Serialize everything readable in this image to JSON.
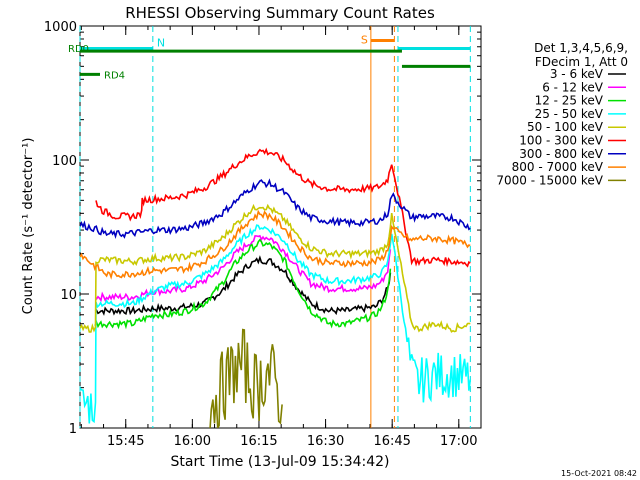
{
  "chart_data": {
    "type": "line",
    "title": "RHESSI Observing Summary Count Rates",
    "xlabel": "Start Time (13-Jul-09 15:34:42)",
    "ylabel": "Count Rate (s⁻¹ detector⁻¹)",
    "x_unit": "minutes since 15:34:42",
    "xlim": [
      0,
      90.3
    ],
    "ylim": [
      1,
      1000
    ],
    "yscale": "log",
    "x_ticks": [
      {
        "label": "15:45",
        "value": 10.3
      },
      {
        "label": "16:00",
        "value": 25.3
      },
      {
        "label": "16:15",
        "value": 40.3
      },
      {
        "label": "16:30",
        "value": 55.3
      },
      {
        "label": "16:45",
        "value": 70.3
      },
      {
        "label": "17:00",
        "value": 85.3
      }
    ],
    "y_ticks": [
      {
        "label": "1",
        "value": 1
      },
      {
        "label": "10",
        "value": 10
      },
      {
        "label": "100",
        "value": 100
      },
      {
        "label": "1000",
        "value": 1000
      }
    ],
    "legend_header": [
      "Det 1,3,4,5,6,9,",
      "FDecim 1, Att 0"
    ],
    "legend_position": "right",
    "footer_timestamp": "15-Oct-2021 08:42",
    "flags": {
      "rd0": {
        "label": "RD0",
        "value": 650,
        "x_start": 0,
        "x_end": 72.5,
        "color": "#008000"
      },
      "rd4": {
        "label": "RD4",
        "value": 500,
        "x_start": 72.5,
        "x_end": 87.9,
        "color": "#008000"
      },
      "night": [
        {
          "label": "N",
          "x_start": 0,
          "x_end": 16.4,
          "value": 680
        },
        {
          "label": "",
          "x_start": 71.6,
          "x_end": 87.9,
          "value": 680
        }
      ],
      "saa": {
        "label": "S",
        "x_start": 65.5,
        "x_end": 70.8,
        "value": 780
      },
      "night_color": "#00e0e0",
      "saa_color": "#ff8000"
    },
    "series": [
      {
        "name": "3 - 6 keV",
        "color": "#000000",
        "x": [
          3.4,
          6,
          12,
          16.6,
          20,
          24,
          28,
          32,
          35,
          38,
          40.5,
          43,
          46,
          49,
          52,
          56,
          60,
          64,
          66.5,
          68,
          69.3,
          70.2,
          74.7,
          76,
          80,
          84,
          87.9
        ],
        "y": [
          7.5,
          7.5,
          7.5,
          7.8,
          7.8,
          8,
          8.5,
          10.5,
          13.5,
          16.5,
          18,
          17.5,
          15,
          11,
          8.5,
          7.5,
          7.5,
          7.8,
          8,
          9,
          11,
          16,
          null,
          null,
          null,
          null,
          null
        ]
      },
      {
        "name": "6 - 12 keV",
        "color": "#ff00ff",
        "x": [
          3.4,
          6,
          12,
          16.6,
          20,
          24,
          28,
          32,
          35,
          38,
          40.5,
          43,
          46,
          49,
          52,
          56,
          60,
          64,
          66.5,
          68,
          69.3,
          70.2,
          74.7,
          76,
          80,
          84,
          87.9
        ],
        "y": [
          9.5,
          9.5,
          9.5,
          10.5,
          10.5,
          11,
          12.5,
          15.5,
          20,
          24,
          27,
          26,
          21,
          15.5,
          12,
          11,
          11,
          11,
          11.5,
          12.5,
          15,
          25,
          null,
          null,
          null,
          null,
          null
        ]
      },
      {
        "name": "12 - 25 keV",
        "color": "#00e000",
        "x": [
          3.4,
          6,
          12,
          16.6,
          20,
          24,
          28,
          32,
          35,
          38,
          40.5,
          43,
          46,
          49,
          52,
          56,
          60,
          64,
          66.5,
          68,
          69.3,
          70.2,
          74.7,
          76,
          80,
          84,
          87.9
        ],
        "y": [
          6,
          6,
          6,
          7,
          7,
          7.5,
          8.5,
          12,
          17,
          21.5,
          24,
          23,
          18,
          11,
          7.5,
          6,
          6,
          6.5,
          7,
          8,
          10.5,
          20,
          null,
          null,
          null,
          null,
          null
        ]
      },
      {
        "name": "25 - 50 keV",
        "color": "#00ffff",
        "x": [
          0,
          3.5,
          3.6,
          6,
          12,
          16.6,
          20,
          24,
          28,
          32,
          35,
          38,
          40.5,
          43,
          46,
          49,
          52,
          56,
          60,
          64,
          66.5,
          68,
          69.3,
          70.2,
          74.7,
          76,
          80,
          84,
          87.9
        ],
        "y": [
          1.5,
          1.5,
          8.5,
          8.5,
          8.5,
          10.5,
          11.5,
          12,
          14,
          17.5,
          23,
          28.5,
          32,
          30,
          25,
          18,
          14,
          12.5,
          12.5,
          13,
          13.5,
          14.5,
          17,
          29,
          2.5,
          2.2,
          2.5,
          2.5,
          2.3
        ]
      },
      {
        "name": "50 - 100 keV",
        "color": "#c8c800",
        "x": [
          0,
          3.5,
          3.6,
          6,
          12,
          16.6,
          20,
          24,
          28,
          32,
          35,
          38,
          40.5,
          43,
          46,
          49,
          52,
          56,
          60,
          64,
          66.5,
          68,
          69.3,
          70.2,
          74.7,
          76,
          80,
          84,
          87.9
        ],
        "y": [
          5.5,
          5.5,
          18,
          18,
          17.5,
          18.5,
          18.5,
          19,
          21,
          26,
          33,
          41,
          46,
          43,
          36,
          27,
          22,
          20,
          20,
          20,
          20.5,
          21.5,
          24,
          38,
          6,
          5.5,
          6,
          5.5,
          6
        ]
      },
      {
        "name": "100 - 300 keV",
        "color": "#ff0000",
        "x": [
          3.6,
          5,
          8,
          12,
          13.9,
          14.0,
          16.6,
          20,
          24,
          28,
          32,
          35,
          38,
          40.5,
          43,
          46,
          49,
          52,
          56,
          60,
          64,
          66.5,
          68,
          69.3,
          70.2,
          74.7,
          76,
          80,
          84,
          87.9
        ],
        "y": [
          49,
          42,
          38,
          38,
          40,
          50,
          51,
          52,
          55,
          62,
          76,
          92,
          107,
          117,
          114,
          99,
          78,
          66,
          61,
          60,
          61,
          62,
          65,
          72,
          96,
          18,
          17.5,
          18,
          17.5,
          17
        ]
      },
      {
        "name": "300 - 800 keV",
        "color": "#0000c0",
        "x": [
          0,
          3,
          6,
          10,
          14,
          16.6,
          20,
          24,
          28,
          32,
          35,
          38,
          40.5,
          43,
          46,
          49,
          52,
          56,
          60,
          64,
          66.5,
          68,
          69.3,
          70.2,
          74.7,
          76,
          80,
          84,
          87.9
        ],
        "y": [
          33,
          31,
          28,
          28,
          29,
          30,
          30,
          31,
          34,
          40,
          49,
          60,
          68,
          66,
          57,
          44,
          37,
          35,
          34,
          34,
          35,
          36,
          40,
          55,
          37,
          38,
          38,
          37,
          31
        ]
      },
      {
        "name": "800 - 7000 keV",
        "color": "#ff8000",
        "x": [
          0,
          3,
          6,
          10,
          14,
          16.6,
          20,
          24,
          28,
          32,
          35,
          38,
          40.5,
          43,
          46,
          49,
          52,
          56,
          60,
          64,
          66.5,
          68,
          69.3,
          70.2,
          74.7,
          76,
          80,
          84,
          87.9
        ],
        "y": [
          20,
          16.5,
          14,
          14,
          14.5,
          15,
          15,
          15.5,
          17.5,
          21.5,
          27.5,
          35,
          40,
          38,
          31,
          23,
          18.5,
          17,
          17,
          17,
          17.5,
          18.5,
          21,
          31,
          25,
          26,
          26,
          25,
          23
        ]
      },
      {
        "name": "7000 - 15000 keV",
        "color": "#808000",
        "x": [
          28.5,
          31,
          33,
          35,
          37,
          38,
          40,
          42,
          44,
          45.5
        ],
        "y": [
          1.3,
          1.8,
          2.2,
          2.8,
          3.0,
          2.3,
          2.0,
          2.7,
          2.2,
          1.5
        ]
      }
    ]
  }
}
